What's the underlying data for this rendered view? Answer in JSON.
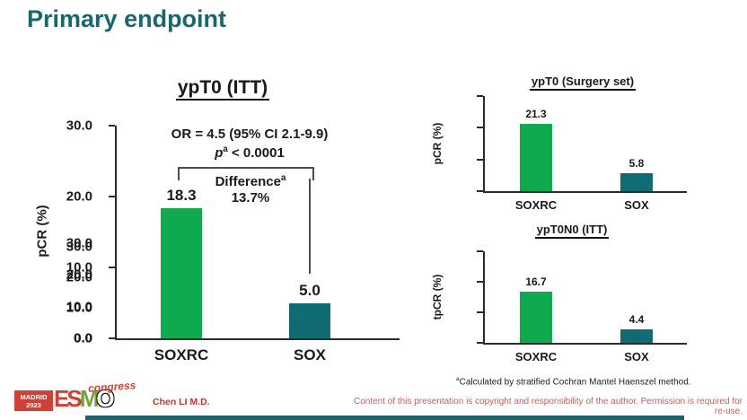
{
  "slide": {
    "title": "Primary endpoint"
  },
  "chart_data": [
    {
      "id": "ypT0-ITT",
      "type": "bar",
      "title": "ypT0 (ITT)",
      "ylabel": "pCR (%)",
      "ylim": [
        0,
        30
      ],
      "yticks": [
        30,
        20,
        10,
        0
      ],
      "categories": [
        "SOXRC",
        "SOX"
      ],
      "values": [
        18.3,
        5.0
      ],
      "value_labels": [
        "18.3",
        "5.0"
      ],
      "bar_colors": [
        "#0fa94e",
        "#116b72"
      ],
      "grid": false,
      "annotations": {
        "or_line": "OR = 4.5 (95% CI 2.1-9.9)",
        "p_symbol": "p",
        "p_sup": "a",
        "p_value": " < 0.0001",
        "difference_label": "Difference",
        "difference_sup": "a",
        "difference_value": "13.7%"
      }
    },
    {
      "id": "ypT0-surgery-set",
      "type": "bar",
      "title": "ypT0 (Surgery set)",
      "ylabel": "pCR (%)",
      "ylim": [
        0,
        30
      ],
      "yticks": [
        30,
        20,
        10,
        0
      ],
      "categories": [
        "SOXRC",
        "SOX"
      ],
      "values": [
        21.3,
        5.8
      ],
      "value_labels": [
        "21.3",
        "5.8"
      ],
      "bar_colors": [
        "#0fa94e",
        "#116b72"
      ],
      "grid": false
    },
    {
      "id": "ypT0N0-ITT",
      "type": "bar",
      "title": "ypT0N0 (ITT)",
      "ylabel": "tpCR (%)",
      "ylim": [
        0,
        30
      ],
      "yticks": [
        30,
        20,
        10,
        0
      ],
      "categories": [
        "SOXRC",
        "SOX"
      ],
      "values": [
        16.7,
        4.4
      ],
      "value_labels": [
        "16.7",
        "4.4"
      ],
      "bar_colors": [
        "#0fa94e",
        "#116b72"
      ],
      "grid": false
    }
  ],
  "footnote": {
    "sup": "a",
    "text": "Calculated by stratified Cochran Mantel Haenszel method."
  },
  "footer": {
    "author": "Chen LI M.D.",
    "copyright": "Content of this presentation is copyright and responsibility of the author. Permission is required for re-use.",
    "logo": {
      "city": "MADRID",
      "year": "2023",
      "letters": [
        "E",
        "S",
        "M",
        "O"
      ],
      "congress": "congress"
    }
  },
  "colors": {
    "title_teal": "#17676d",
    "bar_green": "#0fa94e",
    "bar_teal": "#116b72",
    "accent_red": "#c0504d",
    "bottom_strip": "#17676d"
  }
}
